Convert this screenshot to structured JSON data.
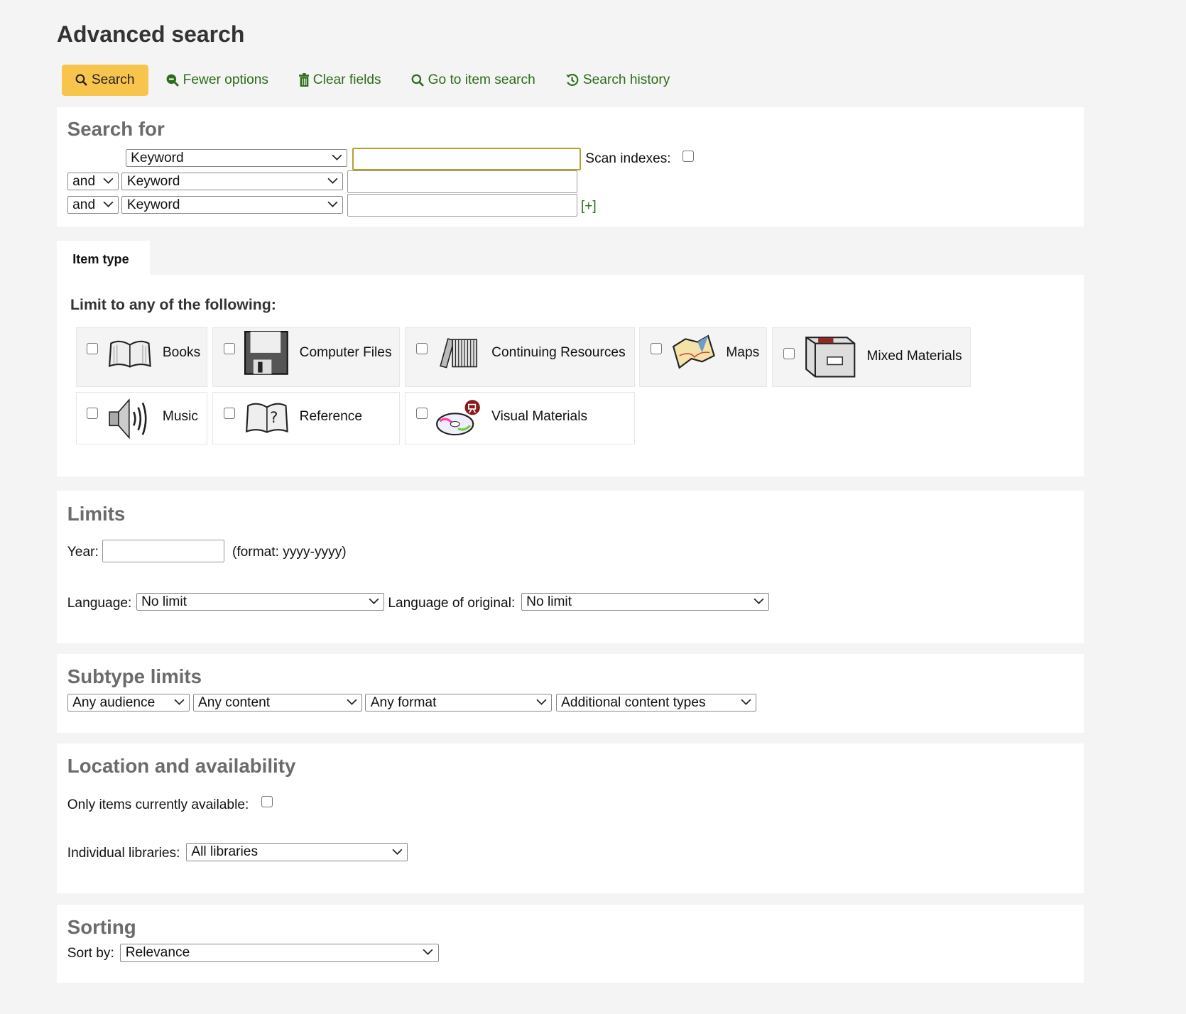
{
  "page_title": "Advanced search",
  "toolbar": {
    "search": "Search",
    "fewer_options": "Fewer options",
    "clear_fields": "Clear fields",
    "item_search": "Go to item search",
    "search_history": "Search history"
  },
  "search_for": {
    "heading": "Search for",
    "rows": [
      {
        "operator": null,
        "index": "Keyword",
        "value": ""
      },
      {
        "operator": "and",
        "index": "Keyword",
        "value": ""
      },
      {
        "operator": "and",
        "index": "Keyword",
        "value": ""
      }
    ],
    "scan_indexes": "Scan indexes:",
    "add_row": "[+]"
  },
  "item_type": {
    "tab": "Item type",
    "limit_heading": "Limit to any of the following:",
    "types": [
      {
        "label": "Books",
        "icon": "book-icon"
      },
      {
        "label": "Computer Files",
        "icon": "floppy-disk-icon"
      },
      {
        "label": "Continuing Resources",
        "icon": "periodicals-icon"
      },
      {
        "label": "Maps",
        "icon": "map-icon"
      },
      {
        "label": "Mixed Materials",
        "icon": "filing-box-icon"
      },
      {
        "label": "Music",
        "icon": "speaker-icon"
      },
      {
        "label": "Reference",
        "icon": "reference-book-icon"
      },
      {
        "label": "Visual Materials",
        "icon": "disc-icon"
      }
    ]
  },
  "limits": {
    "heading": "Limits",
    "year_label": "Year:",
    "year_value": "",
    "year_format": "(format: yyyy-yyyy)",
    "language_label": "Language:",
    "language_value": "No limit",
    "orig_language_label": "Language of original:",
    "orig_language_value": "No limit"
  },
  "subtype": {
    "heading": "Subtype limits",
    "audience": "Any audience",
    "content": "Any content",
    "format": "Any format",
    "additional": "Additional content types"
  },
  "location": {
    "heading": "Location and availability",
    "available_label": "Only items currently available:",
    "libraries_label": "Individual libraries:",
    "libraries_value": "All libraries"
  },
  "sorting": {
    "heading": "Sorting",
    "sort_label": "Sort by:",
    "sort_value": "Relevance"
  },
  "colors": {
    "accent": "#f7c54c",
    "link": "#2e6b1c"
  }
}
